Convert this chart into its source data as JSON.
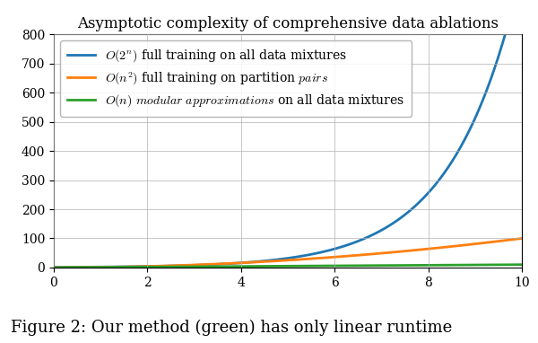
{
  "title": "Asymptotic complexity of comprehensive data ablations",
  "xlim": [
    0,
    10
  ],
  "ylim": [
    0,
    800
  ],
  "xticks": [
    0,
    2,
    4,
    6,
    8,
    10
  ],
  "yticks": [
    0,
    100,
    200,
    300,
    400,
    500,
    600,
    700,
    800
  ],
  "line_exp_color": "#1f77b4",
  "line_quad_color": "#ff7f0e",
  "line_linear_color": "#2ca02c",
  "linewidth": 2.0,
  "legend_label_exp": "$O(2^n)$ full training on all data mixtures",
  "legend_label_quad": "$O(n^2)$ full training on partition $\\mathit{pairs}$",
  "legend_label_linear": "$O(n)$ $\\mathit{modular\\ approximations}$ on all data mixtures",
  "grid_color": "#b0b0b0",
  "grid_linewidth": 0.5,
  "title_fontsize": 12,
  "legend_fontsize": 10,
  "caption": "Figure 2: Our method (green) has only linear runtime",
  "caption_fontsize": 13,
  "figsize": [
    6.0,
    3.82
  ],
  "dpi": 100
}
